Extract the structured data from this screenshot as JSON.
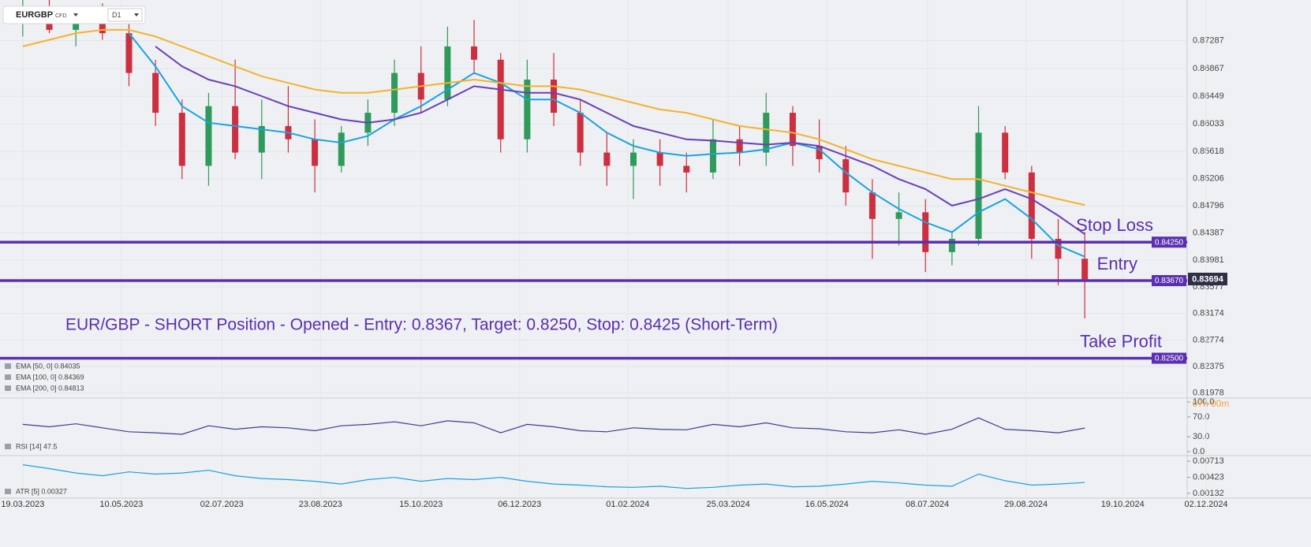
{
  "header": {
    "symbol": "EURGBP",
    "instrument": "CFD",
    "timeframe": "D1",
    "timer": "07h 00m"
  },
  "chart_data": [
    {
      "type": "candlestick",
      "annotation": "EUR/GBP - SHORT Position - Opened - Entry: 0.8367, Target: 0.8250, Stop: 0.8425 (Short-Term)",
      "x": [
        "2023-03-19",
        "2023-04-02",
        "2023-04-16",
        "2023-04-30",
        "2023-05-14",
        "2023-05-28",
        "2023-06-11",
        "2023-06-25",
        "2023-07-09",
        "2023-07-23",
        "2023-08-06",
        "2023-08-20",
        "2023-09-03",
        "2023-09-17",
        "2023-10-01",
        "2023-10-15",
        "2023-10-29",
        "2023-11-12",
        "2023-11-26",
        "2023-12-10",
        "2023-12-24",
        "2024-01-07",
        "2024-01-21",
        "2024-02-04",
        "2024-02-18",
        "2024-03-03",
        "2024-03-17",
        "2024-03-31",
        "2024-04-14",
        "2024-04-28",
        "2024-05-12",
        "2024-05-26",
        "2024-06-09",
        "2024-06-23",
        "2024-07-07",
        "2024-07-21",
        "2024-08-04",
        "2024-08-18",
        "2024-09-01",
        "2024-09-15",
        "2024-09-29"
      ],
      "open": [
        0.876,
        0.877,
        0.8745,
        0.876,
        0.874,
        0.868,
        0.862,
        0.854,
        0.863,
        0.856,
        0.86,
        0.858,
        0.854,
        0.859,
        0.862,
        0.868,
        0.864,
        0.872,
        0.87,
        0.858,
        0.867,
        0.862,
        0.856,
        0.854,
        0.856,
        0.854,
        0.853,
        0.858,
        0.856,
        0.862,
        0.857,
        0.855,
        0.85,
        0.846,
        0.847,
        0.841,
        0.843,
        0.859,
        0.853,
        0.843,
        0.84
      ],
      "high": [
        0.879,
        0.879,
        0.8775,
        0.8785,
        0.876,
        0.87,
        0.864,
        0.865,
        0.87,
        0.864,
        0.866,
        0.861,
        0.86,
        0.864,
        0.87,
        0.872,
        0.875,
        0.876,
        0.871,
        0.87,
        0.871,
        0.864,
        0.859,
        0.858,
        0.858,
        0.856,
        0.861,
        0.86,
        0.865,
        0.863,
        0.861,
        0.857,
        0.852,
        0.85,
        0.849,
        0.844,
        0.863,
        0.86,
        0.854,
        0.846,
        0.844
      ],
      "low": [
        0.8735,
        0.874,
        0.872,
        0.873,
        0.866,
        0.86,
        0.852,
        0.851,
        0.855,
        0.852,
        0.856,
        0.85,
        0.853,
        0.857,
        0.86,
        0.862,
        0.863,
        0.868,
        0.856,
        0.856,
        0.86,
        0.854,
        0.851,
        0.849,
        0.851,
        0.85,
        0.852,
        0.854,
        0.854,
        0.854,
        0.853,
        0.848,
        0.84,
        0.842,
        0.838,
        0.839,
        0.842,
        0.852,
        0.84,
        0.836,
        0.831
      ],
      "close": [
        0.877,
        0.8745,
        0.876,
        0.874,
        0.868,
        0.862,
        0.854,
        0.863,
        0.856,
        0.86,
        0.858,
        0.854,
        0.859,
        0.862,
        0.868,
        0.864,
        0.872,
        0.87,
        0.858,
        0.867,
        0.862,
        0.856,
        0.854,
        0.856,
        0.854,
        0.853,
        0.858,
        0.856,
        0.862,
        0.857,
        0.855,
        0.85,
        0.846,
        0.847,
        0.841,
        0.843,
        0.859,
        0.853,
        0.843,
        0.84,
        0.8369
      ],
      "up_color": "#2e9a5b",
      "down_color": "#cc2f3f",
      "series": [
        {
          "name": "EMA [50, 0] 0.84035",
          "color": "#1aa3e0",
          "values": [
            null,
            null,
            null,
            null,
            0.874,
            0.869,
            0.863,
            0.8605,
            0.86,
            0.8595,
            0.859,
            0.858,
            0.8575,
            0.8585,
            0.861,
            0.863,
            0.8655,
            0.868,
            0.8665,
            0.864,
            0.864,
            0.862,
            0.859,
            0.857,
            0.856,
            0.8555,
            0.8558,
            0.856,
            0.8565,
            0.8575,
            0.8565,
            0.853,
            0.85,
            0.8475,
            0.8455,
            0.844,
            0.847,
            0.849,
            0.846,
            0.842,
            0.8403
          ]
        },
        {
          "name": "EMA [100, 0] 0.84369",
          "color": "#6b3fb8",
          "values": [
            null,
            null,
            null,
            null,
            null,
            0.872,
            0.869,
            0.867,
            0.866,
            0.8645,
            0.863,
            0.862,
            0.861,
            0.8605,
            0.861,
            0.862,
            0.864,
            0.866,
            0.8655,
            0.865,
            0.865,
            0.864,
            0.862,
            0.86,
            0.859,
            0.858,
            0.8578,
            0.8575,
            0.8572,
            0.8575,
            0.857,
            0.8555,
            0.854,
            0.852,
            0.8505,
            0.848,
            0.849,
            0.8505,
            0.849,
            0.8465,
            0.8437
          ]
        },
        {
          "name": "EMA [200, 0] 0.84813",
          "color": "#f5b22a",
          "values": [
            0.872,
            0.873,
            0.874,
            0.8745,
            0.8745,
            0.8735,
            0.872,
            0.8705,
            0.869,
            0.8675,
            0.8665,
            0.8655,
            0.865,
            0.865,
            0.8655,
            0.866,
            0.8665,
            0.867,
            0.8665,
            0.866,
            0.866,
            0.8655,
            0.8645,
            0.8635,
            0.8625,
            0.862,
            0.861,
            0.86,
            0.8595,
            0.859,
            0.858,
            0.8565,
            0.855,
            0.854,
            0.853,
            0.852,
            0.852,
            0.851,
            0.85,
            0.849,
            0.8481
          ]
        }
      ],
      "levels": [
        {
          "name": "Stop Loss",
          "value": 0.8425,
          "label": "0.84250"
        },
        {
          "name": "Entry",
          "value": 0.8367,
          "label": "0.83670"
        },
        {
          "name": "Take Profit",
          "value": 0.825,
          "label": "0.82500"
        }
      ],
      "level_color": "#5b2fb0",
      "last_price": 0.83694,
      "xlim": [
        "2023-03-07",
        "2024-11-22"
      ],
      "ylim": [
        0.819,
        0.879
      ],
      "yticks": [
        0.87287,
        0.86867,
        0.86449,
        0.86033,
        0.85618,
        0.85206,
        0.84796,
        0.84387,
        0.83981,
        0.83577,
        0.83174,
        0.82774,
        0.82375,
        0.81978
      ],
      "grid": true
    },
    {
      "type": "line",
      "x": [
        "2023-03-19",
        "2023-04-02",
        "2023-04-16",
        "2023-04-30",
        "2023-05-14",
        "2023-05-28",
        "2023-06-11",
        "2023-06-25",
        "2023-07-09",
        "2023-07-23",
        "2023-08-06",
        "2023-08-20",
        "2023-09-03",
        "2023-09-17",
        "2023-10-01",
        "2023-10-15",
        "2023-10-29",
        "2023-11-12",
        "2023-11-26",
        "2023-12-10",
        "2023-12-24",
        "2024-01-07",
        "2024-01-21",
        "2024-02-04",
        "2024-02-18",
        "2024-03-03",
        "2024-03-17",
        "2024-03-31",
        "2024-04-14",
        "2024-04-28",
        "2024-05-12",
        "2024-05-26",
        "2024-06-09",
        "2024-06-23",
        "2024-07-07",
        "2024-07-21",
        "2024-08-04",
        "2024-08-18",
        "2024-09-01",
        "2024-09-15",
        "2024-09-29"
      ],
      "series": [
        {
          "name": "RSI [14] 47.5",
          "color": "#3a3f8f",
          "values": [
            55,
            50,
            56,
            48,
            40,
            38,
            35,
            52,
            45,
            50,
            48,
            42,
            52,
            55,
            60,
            52,
            62,
            58,
            38,
            55,
            50,
            42,
            40,
            48,
            45,
            44,
            55,
            50,
            58,
            48,
            46,
            40,
            38,
            44,
            35,
            45,
            68,
            45,
            42,
            38,
            47.5
          ]
        }
      ],
      "xlim": [
        "2023-03-07",
        "2024-11-22"
      ],
      "ylim": [
        0,
        100
      ],
      "yticks": [
        {
          "value": 100,
          "label": "100.0"
        },
        {
          "value": 70,
          "label": "70.0"
        },
        {
          "value": 30,
          "label": "30.0"
        },
        {
          "value": 0,
          "label": "0.0"
        }
      ]
    },
    {
      "type": "line",
      "x": [
        "2023-03-19",
        "2023-04-02",
        "2023-04-16",
        "2023-04-30",
        "2023-05-14",
        "2023-05-28",
        "2023-06-11",
        "2023-06-25",
        "2023-07-09",
        "2023-07-23",
        "2023-08-06",
        "2023-08-20",
        "2023-09-03",
        "2023-09-17",
        "2023-10-01",
        "2023-10-15",
        "2023-10-29",
        "2023-11-12",
        "2023-11-26",
        "2023-12-10",
        "2023-12-24",
        "2024-01-07",
        "2024-01-21",
        "2024-02-04",
        "2024-02-18",
        "2024-03-03",
        "2024-03-17",
        "2024-03-31",
        "2024-04-14",
        "2024-04-28",
        "2024-05-12",
        "2024-05-26",
        "2024-06-09",
        "2024-06-23",
        "2024-07-07",
        "2024-07-21",
        "2024-08-04",
        "2024-08-18",
        "2024-09-01",
        "2024-09-15",
        "2024-09-29"
      ],
      "series": [
        {
          "name": "ATR [5] 0.00327",
          "color": "#1aa3e0",
          "values": [
            0.0065,
            0.0058,
            0.005,
            0.0045,
            0.0052,
            0.0048,
            0.005,
            0.0055,
            0.0045,
            0.004,
            0.0038,
            0.0035,
            0.003,
            0.0038,
            0.0042,
            0.0035,
            0.004,
            0.0038,
            0.0042,
            0.0035,
            0.003,
            0.0028,
            0.0025,
            0.0024,
            0.0026,
            0.0022,
            0.0024,
            0.0028,
            0.003,
            0.0025,
            0.0026,
            0.003,
            0.0035,
            0.0032,
            0.0028,
            0.0026,
            0.0048,
            0.0036,
            0.0028,
            0.003,
            0.00327
          ]
        }
      ],
      "xlim": [
        "2023-03-07",
        "2024-11-22"
      ],
      "ylim": [
        0.00074,
        0.00786
      ],
      "yticks": [
        0.00713,
        0.00423,
        0.00132
      ],
      "xticks": [
        {
          "value": "2023-03-19",
          "label": "19.03.2023"
        },
        {
          "value": "2023-05-10",
          "label": "10.05.2023"
        },
        {
          "value": "2023-07-02",
          "label": "02.07.2023"
        },
        {
          "value": "2023-08-23",
          "label": "23.08.2023"
        },
        {
          "value": "2023-10-15",
          "label": "15.10.2023"
        },
        {
          "value": "2023-12-06",
          "label": "06.12.2023"
        },
        {
          "value": "2024-02-01",
          "label": "01.02.2024"
        },
        {
          "value": "2024-03-25",
          "label": "25.03.2024"
        },
        {
          "value": "2024-05-16",
          "label": "16.05.2024"
        },
        {
          "value": "2024-07-08",
          "label": "08.07.2024"
        },
        {
          "value": "2024-08-29",
          "label": "29.08.2024"
        },
        {
          "value": "2024-10-19",
          "label": "19.10.2024"
        },
        {
          "value": "2024-12-02",
          "label": "02.12.2024"
        }
      ]
    }
  ]
}
